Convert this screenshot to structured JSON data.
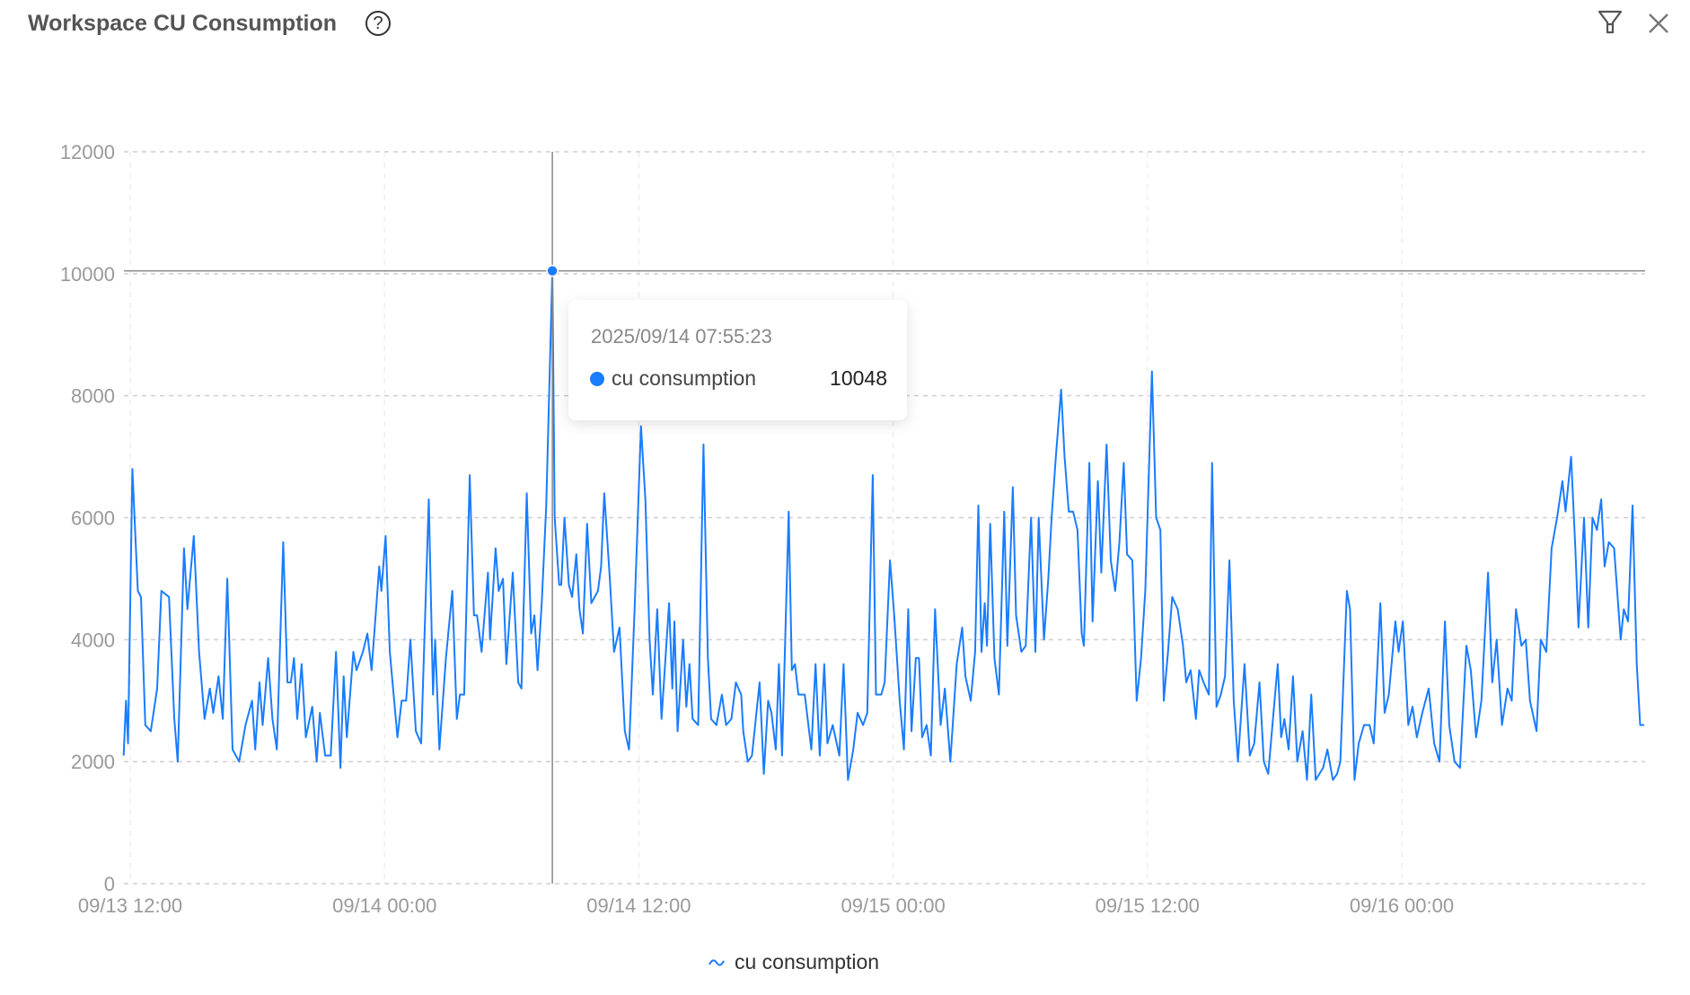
{
  "header": {
    "title": "Workspace CU Consumption",
    "help_icon": "?"
  },
  "toolbar": {
    "filter_icon": "filter-icon",
    "close_icon": "close-icon"
  },
  "colors": {
    "series": "#1a7cff",
    "grid": "#d8d8d8",
    "axis_text": "#999999",
    "crosshair": "#888888"
  },
  "chart_data": {
    "type": "line",
    "title": "Workspace CU Consumption",
    "x_unit": "hours since 09/13 12:00",
    "ylim": [
      0,
      12000
    ],
    "yticks": [
      0,
      2000,
      4000,
      6000,
      8000,
      10000,
      12000
    ],
    "ytick_labels": [
      "0",
      "2000",
      "4000",
      "6000",
      "8000",
      "10000",
      "12000"
    ],
    "xticks": [
      0,
      12,
      24,
      36,
      48,
      60
    ],
    "xtick_labels": [
      "09/13 12:00",
      "09/14 00:00",
      "09/14 12:00",
      "09/15 00:00",
      "09/15 12:00",
      "09/16 00:00"
    ],
    "grid": true,
    "legend": {
      "position": "bottom-center",
      "entries": [
        "cu consumption"
      ]
    },
    "series": [
      {
        "name": "cu consumption",
        "x": [
          -0.31,
          -0.2,
          -0.1,
          0.1,
          0.36,
          0.51,
          0.71,
          0.97,
          1.27,
          1.47,
          1.83,
          2.08,
          2.24,
          2.54,
          2.7,
          3.0,
          3.25,
          3.51,
          3.76,
          3.92,
          4.17,
          4.37,
          4.58,
          4.83,
          5.14,
          5.44,
          5.75,
          5.9,
          6.1,
          6.25,
          6.51,
          6.71,
          6.92,
          7.22,
          7.42,
          7.58,
          7.73,
          7.88,
          8.09,
          8.29,
          8.59,
          8.8,
          8.95,
          9.2,
          9.46,
          9.71,
          9.92,
          10.07,
          10.22,
          10.53,
          10.68,
          10.98,
          11.19,
          11.39,
          11.75,
          11.85,
          12.05,
          12.25,
          12.61,
          12.81,
          13.02,
          13.22,
          13.48,
          13.73,
          14.09,
          14.29,
          14.39,
          14.59,
          14.9,
          15.2,
          15.41,
          15.56,
          15.76,
          16.02,
          16.22,
          16.37,
          16.58,
          16.88,
          16.98,
          17.24,
          17.39,
          17.59,
          17.75,
          18.05,
          18.31,
          18.46,
          18.71,
          18.92,
          19.07,
          19.22,
          19.42,
          19.63,
          19.92,
          20.03,
          20.24,
          20.34,
          20.49,
          20.7,
          20.85,
          21.05,
          21.2,
          21.36,
          21.56,
          21.76,
          22.07,
          22.22,
          22.37,
          22.63,
          22.83,
          23.09,
          23.34,
          23.54,
          23.8,
          24.1,
          24.31,
          24.51,
          24.66,
          24.87,
          25.07,
          25.43,
          25.58,
          25.68,
          25.83,
          26.09,
          26.24,
          26.39,
          26.54,
          26.8,
          27.05,
          27.26,
          27.41,
          27.66,
          27.92,
          28.12,
          28.37,
          28.58,
          28.83,
          28.93,
          29.14,
          29.34,
          29.7,
          29.9,
          30.1,
          30.26,
          30.46,
          30.61,
          30.76,
          31.07,
          31.22,
          31.37,
          31.53,
          31.83,
          32.14,
          32.34,
          32.54,
          32.75,
          32.9,
          33.15,
          33.46,
          33.66,
          33.87,
          34.12,
          34.32,
          34.58,
          34.78,
          35.04,
          35.19,
          35.44,
          35.6,
          35.85,
          36.05,
          36.31,
          36.51,
          36.71,
          36.87,
          37.07,
          37.22,
          37.37,
          37.58,
          37.78,
          37.98,
          38.24,
          38.44,
          38.7,
          39.0,
          39.26,
          39.41,
          39.66,
          39.87,
          40.02,
          40.17,
          40.32,
          40.43,
          40.58,
          40.78,
          40.99,
          41.24,
          41.39,
          41.65,
          41.8,
          42.05,
          42.26,
          42.51,
          42.71,
          42.87,
          43.12,
          43.32,
          43.48,
          43.68,
          43.93,
          44.09,
          44.29,
          44.49,
          44.7,
          44.9,
          45.0,
          45.26,
          45.41,
          45.66,
          45.82,
          46.07,
          46.27,
          46.48,
          46.68,
          46.88,
          47.04,
          47.29,
          47.49,
          47.7,
          47.9,
          48.21,
          48.41,
          48.61,
          48.77,
          48.97,
          49.17,
          49.43,
          49.68,
          49.83,
          50.04,
          50.29,
          50.44,
          50.65,
          50.9,
          51.05,
          51.26,
          51.46,
          51.66,
          51.87,
          52.07,
          52.27,
          52.58,
          52.83,
          53.04,
          53.29,
          53.49,
          53.7,
          53.9,
          54.15,
          54.31,
          54.46,
          54.66,
          54.87,
          55.07,
          55.32,
          55.53,
          55.73,
          55.94,
          56.29,
          56.49,
          56.75,
          56.95,
          57.1,
          57.41,
          57.56,
          57.77,
          57.97,
          58.22,
          58.48,
          58.68,
          58.99,
          59.19,
          59.39,
          59.7,
          59.85,
          60.05,
          60.31,
          60.51,
          60.71,
          60.97,
          61.27,
          61.53,
          61.78,
          62.04,
          62.24,
          62.49,
          62.75,
          63.05,
          63.26,
          63.51,
          63.76,
          64.07,
          64.27,
          64.48,
          64.73,
          64.99,
          65.19,
          65.39,
          65.65,
          65.85,
          66.05,
          66.36,
          66.56,
          66.82,
          67.07,
          67.33,
          67.58,
          67.73,
          67.99,
          68.19,
          68.34,
          68.6,
          68.8,
          69.0,
          69.21,
          69.41,
          69.57,
          69.77,
          70.02,
          70.33,
          70.48,
          70.68,
          70.89,
          71.09,
          71.25,
          71.44
        ],
        "y": [
          2100,
          3000,
          2300,
          6800,
          4800,
          4700,
          2600,
          2500,
          3200,
          4800,
          4700,
          2700,
          2000,
          5500,
          4500,
          5700,
          3800,
          2700,
          3200,
          2800,
          3400,
          2700,
          5000,
          2200,
          2000,
          2600,
          3000,
          2200,
          3300,
          2600,
          3700,
          2700,
          2200,
          5600,
          3300,
          3300,
          3700,
          2700,
          3600,
          2400,
          2900,
          2000,
          2800,
          2100,
          2100,
          3800,
          1900,
          3400,
          2400,
          3800,
          3500,
          3800,
          4100,
          3500,
          5200,
          4800,
          5700,
          3800,
          2400,
          3000,
          3000,
          4000,
          2500,
          2300,
          6300,
          3100,
          4000,
          2200,
          3700,
          4800,
          2700,
          3100,
          3100,
          6700,
          4400,
          4400,
          3800,
          5100,
          4000,
          5500,
          4800,
          5000,
          3600,
          5100,
          3300,
          3200,
          6400,
          4100,
          4400,
          3500,
          4600,
          6200,
          10048,
          6000,
          4900,
          4900,
          6000,
          4900,
          4700,
          5400,
          4500,
          4100,
          5900,
          4600,
          4800,
          5200,
          6400,
          5000,
          3800,
          4200,
          2500,
          2200,
          4500,
          7500,
          6300,
          4000,
          3100,
          4500,
          2700,
          4600,
          3200,
          4300,
          2500,
          4000,
          2900,
          3600,
          2700,
          2600,
          7200,
          3700,
          2700,
          2600,
          3100,
          2600,
          2700,
          3300,
          3100,
          2500,
          2000,
          2100,
          3300,
          1800,
          3000,
          2800,
          2200,
          3600,
          2100,
          6100,
          3500,
          3600,
          3100,
          3100,
          2200,
          3600,
          2100,
          3600,
          2300,
          2600,
          2100,
          3600,
          1700,
          2200,
          2800,
          2600,
          2800,
          6700,
          3100,
          3100,
          3300,
          5300,
          4400,
          3000,
          2200,
          4500,
          2500,
          3700,
          3700,
          2400,
          2600,
          2100,
          4500,
          2600,
          3200,
          2000,
          3600,
          4200,
          3400,
          3000,
          3800,
          6200,
          3800,
          4600,
          3900,
          5900,
          3700,
          3100,
          6100,
          3900,
          6500,
          4400,
          3800,
          3900,
          6000,
          3800,
          6000,
          4000,
          5000,
          6000,
          7000,
          8100,
          7000,
          6100,
          6100,
          5800,
          4100,
          3900,
          6900,
          4300,
          6600,
          5100,
          7200,
          5300,
          4800,
          5600,
          6900,
          5400,
          5300,
          3000,
          3700,
          4800,
          8400,
          6000,
          5800,
          3000,
          3800,
          4700,
          4500,
          3900,
          3300,
          3500,
          2700,
          3500,
          3300,
          3100,
          6900,
          2900,
          3100,
          3400,
          5300,
          3000,
          2000,
          3600,
          2100,
          2300,
          3300,
          2000,
          1800,
          2600,
          3600,
          2400,
          2700,
          2200,
          3400,
          2000,
          2500,
          1700,
          3100,
          1700,
          1900,
          2200,
          1700,
          1800,
          2000,
          4800,
          4500,
          1700,
          2300,
          2600,
          2600,
          2300,
          4600,
          2800,
          3100,
          4300,
          3800,
          4300,
          2600,
          2900,
          2400,
          2800,
          3200,
          2300,
          2000,
          4300,
          2600,
          2000,
          1900,
          3900,
          3500,
          2400,
          3000,
          5100,
          3300,
          4000,
          2600,
          3200,
          3000,
          4500,
          3900,
          4000,
          3000,
          2500,
          4000,
          3800,
          5500,
          6000,
          6600,
          6100,
          7000,
          5500,
          4200,
          6000,
          4200,
          6000,
          5800,
          6300,
          5200,
          5600,
          5500,
          4000,
          4500,
          4300,
          6200,
          3600,
          2600,
          2600
        ]
      }
    ],
    "tooltip": {
      "datetime": "2025/09/14 07:55:23",
      "x": 19.92,
      "series": "cu consumption",
      "value": "10048"
    }
  }
}
